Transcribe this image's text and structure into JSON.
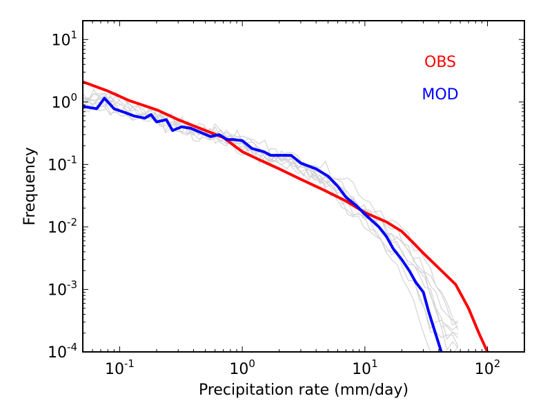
{
  "chart_data": {
    "type": "line",
    "title": "",
    "xlabel": "Precipitation rate (mm/day)",
    "ylabel": "Frequency",
    "xscale": "log",
    "yscale": "log",
    "xlim": [
      0.05,
      200
    ],
    "ylim": [
      0.0001,
      20
    ],
    "grid": false,
    "legend_position": "top-right",
    "x_ticks": [
      {
        "value": 0.1,
        "base": "10",
        "exp": "-1"
      },
      {
        "value": 1,
        "base": "10",
        "exp": "0"
      },
      {
        "value": 10,
        "base": "10",
        "exp": "1"
      },
      {
        "value": 100,
        "base": "10",
        "exp": "2"
      }
    ],
    "y_ticks": [
      {
        "value": 0.0001,
        "base": "10",
        "exp": "-4"
      },
      {
        "value": 0.001,
        "base": "10",
        "exp": "-3"
      },
      {
        "value": 0.01,
        "base": "10",
        "exp": "-2"
      },
      {
        "value": 0.1,
        "base": "10",
        "exp": "-1"
      },
      {
        "value": 1,
        "base": "10",
        "exp": "0"
      },
      {
        "value": 10,
        "base": "10",
        "exp": "1"
      }
    ],
    "series": [
      {
        "name": "OBS",
        "color": "#ff0000",
        "width": 4,
        "label_in_legend": true,
        "points": [
          [
            0.05,
            2.1
          ],
          [
            0.08,
            1.5
          ],
          [
            0.12,
            1.05
          ],
          [
            0.2,
            0.75
          ],
          [
            0.3,
            0.52
          ],
          [
            0.45,
            0.38
          ],
          [
            0.7,
            0.27
          ],
          [
            1.0,
            0.16
          ],
          [
            1.5,
            0.11
          ],
          [
            2.0,
            0.085
          ],
          [
            3.0,
            0.058
          ],
          [
            4.5,
            0.04
          ],
          [
            7.0,
            0.026
          ],
          [
            10,
            0.017
          ],
          [
            15,
            0.012
          ],
          [
            20,
            0.0085
          ],
          [
            25,
            0.0055
          ],
          [
            30,
            0.0038
          ],
          [
            40,
            0.0022
          ],
          [
            55,
            0.0012
          ],
          [
            70,
            0.0005
          ],
          [
            85,
            0.0002
          ],
          [
            100,
            0.0001
          ]
        ]
      },
      {
        "name": "MOD",
        "color": "#0000ff",
        "width": 4,
        "label_in_legend": true,
        "points": [
          [
            0.05,
            0.85
          ],
          [
            0.065,
            0.78
          ],
          [
            0.075,
            1.15
          ],
          [
            0.09,
            0.78
          ],
          [
            0.11,
            0.68
          ],
          [
            0.13,
            0.6
          ],
          [
            0.16,
            0.55
          ],
          [
            0.18,
            0.63
          ],
          [
            0.2,
            0.48
          ],
          [
            0.24,
            0.52
          ],
          [
            0.27,
            0.35
          ],
          [
            0.32,
            0.4
          ],
          [
            0.38,
            0.38
          ],
          [
            0.45,
            0.33
          ],
          [
            0.55,
            0.28
          ],
          [
            0.65,
            0.3
          ],
          [
            0.75,
            0.25
          ],
          [
            0.85,
            0.25
          ],
          [
            1.0,
            0.24
          ],
          [
            1.2,
            0.18
          ],
          [
            1.5,
            0.16
          ],
          [
            1.7,
            0.14
          ],
          [
            2.0,
            0.14
          ],
          [
            2.5,
            0.14
          ],
          [
            3.0,
            0.105
          ],
          [
            4.0,
            0.085
          ],
          [
            5.0,
            0.065
          ],
          [
            6.0,
            0.045
          ],
          [
            7.0,
            0.03
          ],
          [
            8.5,
            0.022
          ],
          [
            10,
            0.016
          ],
          [
            13,
            0.01
          ],
          [
            15,
            0.007
          ],
          [
            17,
            0.0045
          ],
          [
            20,
            0.003
          ],
          [
            23,
            0.002
          ],
          [
            26,
            0.0013
          ],
          [
            30,
            0.0009
          ],
          [
            33,
            0.00045
          ],
          [
            37,
            0.00022
          ],
          [
            42,
            0.0001
          ]
        ]
      }
    ],
    "legend": [
      {
        "label": "OBS",
        "color": "#ff0000"
      },
      {
        "label": "MOD",
        "color": "#0000ff"
      }
    ],
    "background_series": {
      "color": "#d3d3d3",
      "description_count": 9
    }
  }
}
